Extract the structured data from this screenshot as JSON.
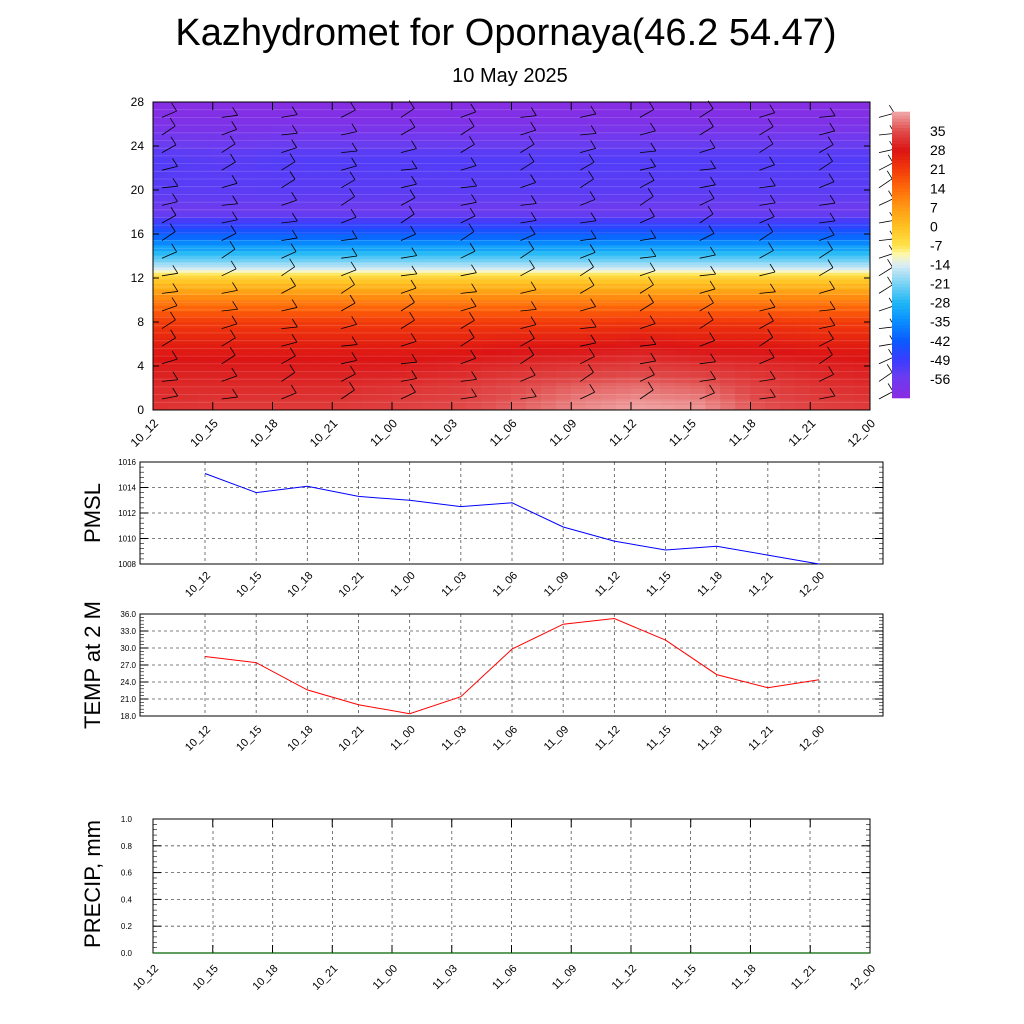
{
  "header": {
    "title": "Kazhydromet for Opornaya(46.2 54.47)",
    "subtitle": "10 May 2025"
  },
  "colors": {
    "pmsl_line": "#0000ff",
    "temp_line": "#ff0000",
    "precip_line": "#006400",
    "grid": "#555555"
  },
  "chart_data": [
    {
      "type": "heatmap",
      "name": "temperature-wind-profile",
      "x": [
        "10_12",
        "10_15",
        "10_18",
        "10_21",
        "11_00",
        "11_03",
        "11_06",
        "11_09",
        "11_12",
        "11_15",
        "11_18",
        "11_21",
        "12_00"
      ],
      "y_ticks": [
        0,
        4,
        8,
        12,
        16,
        20,
        24,
        28
      ],
      "ylim": [
        0,
        28
      ],
      "colorbar_labels": [
        "35",
        "28",
        "21",
        "14",
        "7",
        "0",
        "-7",
        "-14",
        "-21",
        "-28",
        "-35",
        "-42",
        "-49",
        "-56"
      ],
      "colorbar_range": [
        -63,
        42
      ],
      "levels": [
        {
          "y": 0,
          "values": [
            32,
            33,
            33,
            33,
            34,
            35,
            37,
            40,
            42,
            41,
            36,
            34,
            33
          ]
        },
        {
          "y": 2,
          "values": [
            31,
            31,
            31,
            31,
            32,
            33,
            35,
            37,
            38,
            37,
            34,
            32,
            31
          ]
        },
        {
          "y": 4,
          "values": [
            29,
            29,
            29,
            29,
            29,
            30,
            31,
            32,
            33,
            32,
            31,
            30,
            29
          ]
        },
        {
          "y": 6,
          "values": [
            26,
            26,
            26,
            26,
            26,
            26,
            27,
            27,
            28,
            27,
            27,
            26,
            26
          ]
        },
        {
          "y": 8,
          "values": [
            21,
            21,
            21,
            21,
            21,
            21,
            21,
            21,
            22,
            22,
            22,
            21,
            21
          ]
        },
        {
          "y": 10,
          "values": [
            11,
            11,
            11,
            11,
            11,
            11,
            11,
            11,
            11,
            11,
            11,
            11,
            11
          ]
        },
        {
          "y": 12,
          "values": [
            -3,
            -3,
            -3,
            -3,
            -3,
            -3,
            -3,
            -3,
            -3,
            -3,
            -3,
            -3,
            -3
          ]
        },
        {
          "y": 13,
          "values": [
            -16,
            -16,
            -16,
            -16,
            -16,
            -16,
            -16,
            -16,
            -16,
            -16,
            -16,
            -16,
            -16
          ]
        },
        {
          "y": 14,
          "values": [
            -25,
            -25,
            -25,
            -25,
            -25,
            -25,
            -25,
            -25,
            -25,
            -25,
            -25,
            -25,
            -25
          ]
        },
        {
          "y": 16,
          "values": [
            -42,
            -42,
            -42,
            -42,
            -42,
            -42,
            -42,
            -42,
            -42,
            -42,
            -42,
            -42,
            -42
          ]
        },
        {
          "y": 18,
          "values": [
            -56,
            -56,
            -56,
            -56,
            -56,
            -56,
            -56,
            -56,
            -56,
            -56,
            -56,
            -56,
            -56
          ]
        },
        {
          "y": 20,
          "values": [
            -53,
            -53,
            -53,
            -53,
            -53,
            -53,
            -53,
            -53,
            -53,
            -53,
            -53,
            -53,
            -53
          ]
        },
        {
          "y": 23,
          "values": [
            -52,
            -53,
            -52,
            -52,
            -52,
            -52,
            -52,
            -52,
            -52,
            -52,
            -52,
            -52,
            -52
          ]
        },
        {
          "y": 26,
          "values": [
            -60,
            -60,
            -60,
            -60,
            -60,
            -60,
            -60,
            -60,
            -60,
            -60,
            -60,
            -60,
            -60
          ]
        },
        {
          "y": 28,
          "values": [
            -62,
            -62,
            -62,
            -62,
            -62,
            -62,
            -62,
            -62,
            -62,
            -62,
            -62,
            -62,
            -62
          ]
        }
      ]
    },
    {
      "type": "line",
      "name": "pmsl",
      "ylabel": "PMSL",
      "x": [
        "10_12",
        "10_15",
        "10_18",
        "10_21",
        "11_00",
        "11_03",
        "11_06",
        "11_09",
        "11_12",
        "11_15",
        "11_18",
        "11_21",
        "12_00"
      ],
      "values": [
        1015.1,
        1013.6,
        1014.1,
        1013.3,
        1013.0,
        1012.5,
        1012.8,
        1010.9,
        1009.8,
        1009.1,
        1009.4,
        1008.7,
        1008.0
      ],
      "ylim": [
        1008,
        1016
      ],
      "y_ticks": [
        "1008",
        "1010",
        "1012",
        "1014",
        "1016"
      ]
    },
    {
      "type": "line",
      "name": "temp",
      "ylabel": "TEMP at 2 M",
      "x": [
        "10_12",
        "10_15",
        "10_18",
        "10_21",
        "11_00",
        "11_03",
        "11_06",
        "11_09",
        "11_12",
        "11_15",
        "11_18",
        "11_21",
        "12_00"
      ],
      "values": [
        28.5,
        27.4,
        22.6,
        20.0,
        18.4,
        21.4,
        29.8,
        34.2,
        35.2,
        31.4,
        25.3,
        23.0,
        24.4
      ],
      "ylim": [
        18,
        36
      ],
      "y_ticks": [
        "18.0",
        "21.0",
        "24.0",
        "27.0",
        "30.0",
        "33.0",
        "36.0"
      ]
    },
    {
      "type": "line",
      "name": "precip",
      "ylabel": "PRECIP, mm",
      "x": [
        "10_12",
        "10_15",
        "10_18",
        "10_21",
        "11_00",
        "11_03",
        "11_06",
        "11_09",
        "11_12",
        "11_15",
        "11_18",
        "11_21",
        "12_00"
      ],
      "values": [
        0,
        0,
        0,
        0,
        0,
        0,
        0,
        0,
        0,
        0,
        0,
        0,
        0
      ],
      "ylim": [
        0,
        1
      ],
      "y_ticks": [
        "0.0",
        "0.2",
        "0.4",
        "0.6",
        "0.8",
        "1.0"
      ]
    }
  ]
}
